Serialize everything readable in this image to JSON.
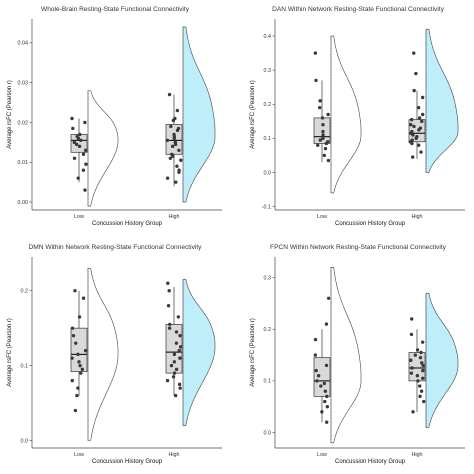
{
  "chart_data": [
    {
      "type": "raincloud",
      "title": "Whole-Brain Resting-State Functional Connectivity",
      "xlabel": "Concussion History Group",
      "ylabel": "Average rsFC (Pearson r)",
      "categories": [
        "Low",
        "High"
      ],
      "ylim": [
        -0.002,
        0.046
      ],
      "yticks": [
        0.0,
        0.01,
        0.02,
        0.03,
        0.04
      ],
      "ytick_labels": [
        "0.00",
        "0.01",
        "0.02",
        "0.03",
        "0.04"
      ],
      "boxes": [
        {
          "q1": 0.0125,
          "median": 0.0155,
          "q3": 0.017,
          "wlo": 0.005,
          "whi": 0.021
        },
        {
          "q1": 0.012,
          "median": 0.0155,
          "q3": 0.0195,
          "wlo": 0.004,
          "whi": 0.027
        }
      ],
      "points": [
        [
          0.021,
          0.02,
          0.0185,
          0.017,
          0.0165,
          0.016,
          0.0155,
          0.015,
          0.0145,
          0.014,
          0.013,
          0.012,
          0.011,
          0.0095,
          0.008,
          0.006,
          0.003
        ],
        [
          0.027,
          0.023,
          0.021,
          0.0205,
          0.019,
          0.0185,
          0.018,
          0.017,
          0.0165,
          0.016,
          0.0155,
          0.015,
          0.0145,
          0.014,
          0.013,
          0.012,
          0.0115,
          0.011,
          0.0105,
          0.009,
          0.008,
          0.0075,
          0.006,
          0.005
        ]
      ],
      "density_ranges": [
        [
          -0.001,
          0.028
        ],
        [
          0.0,
          0.044
        ]
      ],
      "density_modes": [
        0.0155,
        0.0165
      ]
    },
    {
      "type": "raincloud",
      "title": "DAN Within Network Resting-State Functional Connectivity",
      "xlabel": "Concussion History Group",
      "ylabel": "Average rsFC (Pearson r)",
      "categories": [
        "Low",
        "High"
      ],
      "ylim": [
        -0.11,
        0.45
      ],
      "yticks": [
        -0.1,
        0.0,
        0.1,
        0.2,
        0.3,
        0.4
      ],
      "ytick_labels": [
        "-0.1",
        "0.0",
        "0.1",
        "0.2",
        "0.3",
        "0.4"
      ],
      "boxes": [
        {
          "q1": 0.085,
          "median": 0.105,
          "q3": 0.16,
          "wlo": 0.03,
          "whi": 0.27
        },
        {
          "q1": 0.09,
          "median": 0.115,
          "q3": 0.155,
          "wlo": 0.04,
          "whi": 0.24
        }
      ],
      "points": [
        [
          0.35,
          0.27,
          0.21,
          0.19,
          0.17,
          0.16,
          0.14,
          0.12,
          0.11,
          0.1,
          0.095,
          0.09,
          0.085,
          0.08,
          0.07,
          0.05,
          0.035
        ],
        [
          0.35,
          0.29,
          0.24,
          0.22,
          0.19,
          0.17,
          0.16,
          0.155,
          0.15,
          0.14,
          0.135,
          0.13,
          0.125,
          0.12,
          0.115,
          0.11,
          0.105,
          0.1,
          0.095,
          0.09,
          0.085,
          0.08,
          0.06,
          0.045
        ]
      ],
      "density_ranges": [
        [
          -0.06,
          0.4
        ],
        [
          0.0,
          0.42
        ]
      ],
      "density_modes": [
        0.11,
        0.12
      ]
    },
    {
      "type": "raincloud",
      "title": "DMN Within Network Resting-State Functional Connectivity",
      "xlabel": "Concussion History Group",
      "ylabel": "Average rsFC (Pearson r)",
      "categories": [
        "Low",
        "High"
      ],
      "ylim": [
        -0.01,
        0.245
      ],
      "yticks": [
        0.0,
        0.1,
        0.2
      ],
      "ytick_labels": [
        "0.0",
        "0.1",
        "0.2"
      ],
      "boxes": [
        {
          "q1": 0.092,
          "median": 0.115,
          "q3": 0.15,
          "wlo": 0.06,
          "whi": 0.2
        },
        {
          "q1": 0.09,
          "median": 0.118,
          "q3": 0.155,
          "wlo": 0.06,
          "whi": 0.205
        }
      ],
      "points": [
        [
          0.2,
          0.19,
          0.165,
          0.15,
          0.14,
          0.13,
          0.12,
          0.115,
          0.11,
          0.105,
          0.1,
          0.095,
          0.09,
          0.08,
          0.07,
          0.06,
          0.04
        ],
        [
          0.21,
          0.2,
          0.18,
          0.165,
          0.155,
          0.15,
          0.145,
          0.14,
          0.13,
          0.125,
          0.12,
          0.115,
          0.11,
          0.105,
          0.1,
          0.095,
          0.09,
          0.085,
          0.08,
          0.075,
          0.07,
          0.06
        ]
      ],
      "density_ranges": [
        [
          0.0,
          0.23
        ],
        [
          0.02,
          0.215
        ]
      ],
      "density_modes": [
        0.115,
        0.125
      ]
    },
    {
      "type": "raincloud",
      "title": "FPCN Within Network Resting-State Functional Connectivity",
      "xlabel": "Concussion History Group",
      "ylabel": "Average rsFC (Pearson r)",
      "categories": [
        "Low",
        "High"
      ],
      "ylim": [
        -0.03,
        0.34
      ],
      "yticks": [
        0.0,
        0.1,
        0.2,
        0.3
      ],
      "ytick_labels": [
        "0.0",
        "0.1",
        "0.2",
        "0.3"
      ],
      "boxes": [
        {
          "q1": 0.07,
          "median": 0.1,
          "q3": 0.145,
          "wlo": 0.02,
          "whi": 0.2
        },
        {
          "q1": 0.1,
          "median": 0.125,
          "q3": 0.155,
          "wlo": 0.04,
          "whi": 0.2
        }
      ],
      "points": [
        [
          0.26,
          0.21,
          0.18,
          0.15,
          0.13,
          0.12,
          0.11,
          0.1,
          0.095,
          0.09,
          0.08,
          0.07,
          0.06,
          0.05,
          0.04,
          0.02
        ],
        [
          0.22,
          0.19,
          0.175,
          0.16,
          0.155,
          0.15,
          0.145,
          0.14,
          0.135,
          0.13,
          0.125,
          0.12,
          0.115,
          0.11,
          0.105,
          0.1,
          0.09,
          0.08,
          0.07,
          0.06,
          0.04
        ]
      ],
      "density_ranges": [
        [
          -0.02,
          0.32
        ],
        [
          0.01,
          0.27
        ]
      ],
      "density_modes": [
        0.1,
        0.13
      ]
    }
  ],
  "colors": {
    "box_fill": "#d9d9d9",
    "box_stroke": "#333333",
    "point": "#3a3a3a",
    "high_fill": "#bdeefa",
    "density_stroke": "#444444"
  }
}
